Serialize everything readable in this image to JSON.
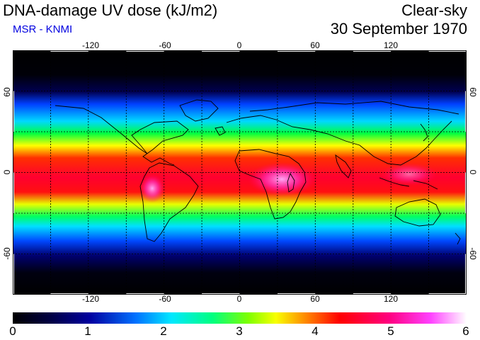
{
  "header": {
    "title": "DNA-damage UV dose (kJ/m2)",
    "credit": "MSR - KNMI",
    "condition": "Clear-sky",
    "date": "30 September 1970"
  },
  "map": {
    "longitude_ticks": [
      "-120",
      "-60",
      "0",
      "60",
      "120"
    ],
    "latitude_ticks_left": [
      "60",
      "0",
      "-60"
    ],
    "latitude_ticks_right": [
      "60",
      "0",
      "-60"
    ],
    "gridlines": "dashed",
    "projection": "plate carree (equirectangular)"
  },
  "colorbar": {
    "labels": [
      "0",
      "1",
      "2",
      "3",
      "4",
      "5",
      "6"
    ],
    "min": 0,
    "max": 6,
    "colors": [
      "#000000",
      "#000080",
      "#0050ff",
      "#00e0ff",
      "#00ff40",
      "#f0ff00",
      "#ff2000",
      "#ff0080",
      "#ff40ff",
      "#ffffff"
    ]
  },
  "colors": {
    "credit": "#0000e0",
    "background": "#ffffff",
    "coastline": "#000000"
  }
}
